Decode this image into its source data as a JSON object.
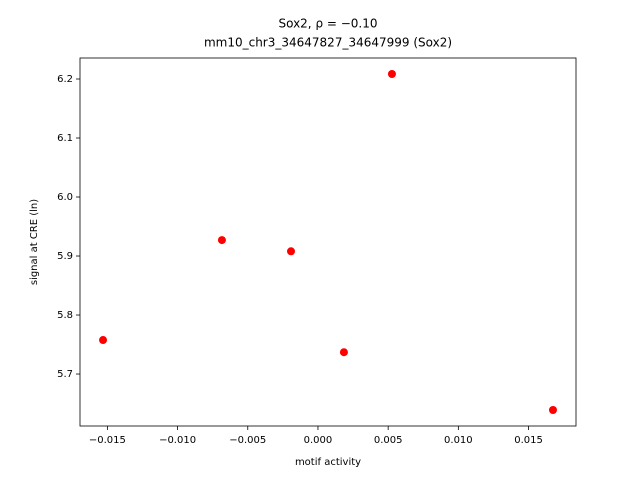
{
  "chart_data": {
    "type": "scatter",
    "title": "Sox2, ρ = −0.10",
    "subtitle": "mm10_chr3_34647827_34647999 (Sox2)",
    "x_label": "motif activity",
    "y_label": "signal at CRE (ln)",
    "color": "#ff0000",
    "x": [
      -0.01531,
      -0.00684,
      -0.00192,
      0.00185,
      0.00527,
      0.01674
    ],
    "values": [
      5.7576,
      5.927,
      5.908,
      5.737,
      6.2085,
      5.639
    ],
    "xlim": [
      -0.01695,
      0.01838
    ],
    "ylim": [
      5.6119,
      6.2356
    ],
    "xticks": [
      {
        "value": -0.015,
        "label": "−0.015"
      },
      {
        "value": -0.01,
        "label": "−0.010"
      },
      {
        "value": -0.005,
        "label": "−0.005"
      },
      {
        "value": 0,
        "label": "0.000"
      },
      {
        "value": 0.005,
        "label": "0.005"
      },
      {
        "value": 0.01,
        "label": "0.010"
      },
      {
        "value": 0.015,
        "label": "0.015"
      }
    ],
    "yticks": [
      {
        "value": 5.7,
        "label": "5.7"
      },
      {
        "value": 5.8,
        "label": "5.8"
      },
      {
        "value": 5.9,
        "label": "5.9"
      },
      {
        "value": 6.0,
        "label": "6.0"
      },
      {
        "value": 6.1,
        "label": "6.1"
      },
      {
        "value": 6.2,
        "label": "6.2"
      }
    ]
  }
}
